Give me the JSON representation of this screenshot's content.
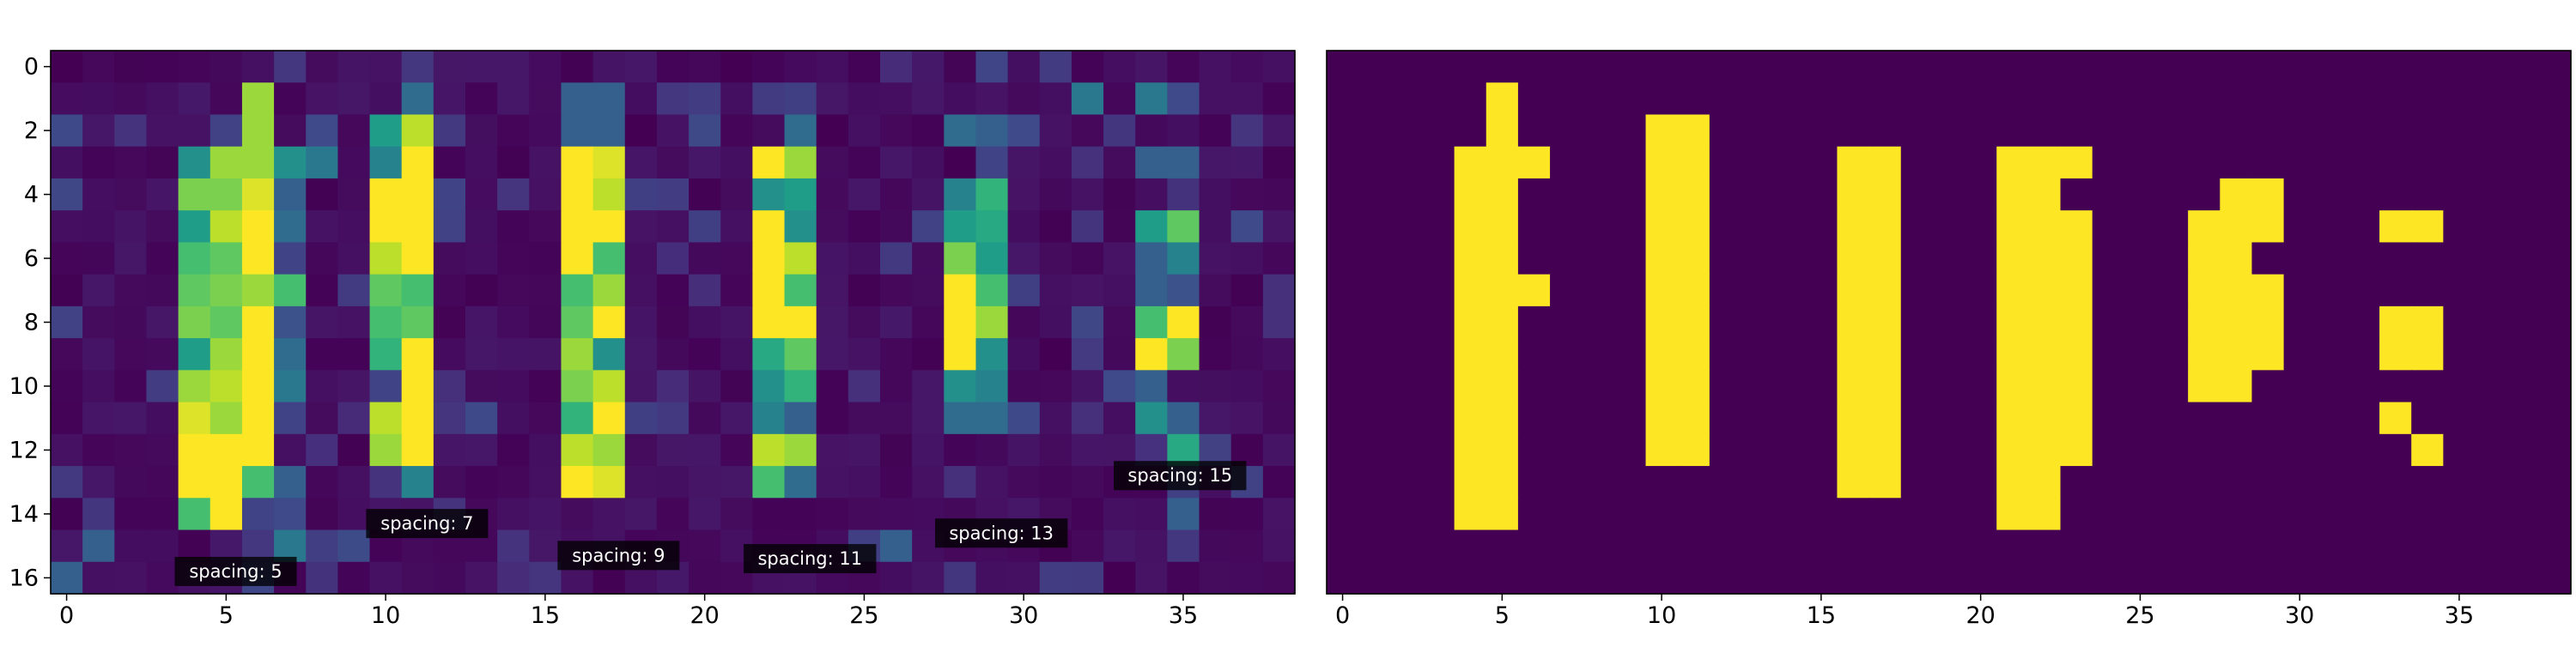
{
  "chart_data": [
    {
      "type": "heatmap",
      "title": "",
      "xlabel": "",
      "ylabel": "",
      "colormap": "viridis",
      "xlim": [
        -0.5,
        38.5
      ],
      "ylim": [
        16.5,
        -0.5
      ],
      "x_ticks": [
        0,
        5,
        10,
        15,
        20,
        25,
        30,
        35
      ],
      "y_ticks": [
        0,
        2,
        4,
        6,
        8,
        10,
        12,
        14,
        16
      ],
      "background_value": 0.0,
      "bright_cells": [
        [
          6,
          1,
          0.85
        ],
        [
          6,
          2,
          0.85
        ],
        [
          4,
          3,
          0.5
        ],
        [
          5,
          3,
          0.85
        ],
        [
          6,
          3,
          0.85
        ],
        [
          7,
          3,
          0.5
        ],
        [
          8,
          3,
          0.4
        ],
        [
          4,
          4,
          0.8
        ],
        [
          5,
          4,
          0.8
        ],
        [
          6,
          4,
          0.95
        ],
        [
          7,
          4,
          0.3
        ],
        [
          4,
          5,
          0.55
        ],
        [
          5,
          5,
          0.9
        ],
        [
          6,
          5,
          1.0
        ],
        [
          7,
          5,
          0.35
        ],
        [
          4,
          6,
          0.7
        ],
        [
          5,
          6,
          0.75
        ],
        [
          6,
          6,
          1.0
        ],
        [
          7,
          6,
          0.2
        ],
        [
          4,
          7,
          0.75
        ],
        [
          5,
          7,
          0.8
        ],
        [
          6,
          7,
          0.85
        ],
        [
          7,
          7,
          0.7
        ],
        [
          4,
          8,
          0.8
        ],
        [
          5,
          8,
          0.75
        ],
        [
          6,
          8,
          1.0
        ],
        [
          7,
          8,
          0.25
        ],
        [
          4,
          9,
          0.55
        ],
        [
          5,
          9,
          0.85
        ],
        [
          6,
          9,
          1.0
        ],
        [
          7,
          9,
          0.35
        ],
        [
          4,
          10,
          0.85
        ],
        [
          5,
          10,
          0.9
        ],
        [
          6,
          10,
          1.0
        ],
        [
          7,
          10,
          0.4
        ],
        [
          4,
          11,
          0.95
        ],
        [
          5,
          11,
          0.85
        ],
        [
          6,
          11,
          1.0
        ],
        [
          7,
          11,
          0.2
        ],
        [
          4,
          12,
          1.0
        ],
        [
          5,
          12,
          1.0
        ],
        [
          6,
          12,
          1.0
        ],
        [
          4,
          13,
          1.0
        ],
        [
          5,
          13,
          1.0
        ],
        [
          6,
          13,
          0.7
        ],
        [
          7,
          13,
          0.3
        ],
        [
          4,
          14,
          0.7
        ],
        [
          5,
          14,
          1.0
        ],
        [
          6,
          14,
          0.2
        ],
        [
          7,
          15,
          0.4
        ],
        [
          1,
          15,
          0.3
        ],
        [
          0,
          16,
          0.3
        ],
        [
          11,
          1,
          0.35
        ],
        [
          10,
          2,
          0.55
        ],
        [
          11,
          2,
          0.9
        ],
        [
          10,
          3,
          0.45
        ],
        [
          11,
          3,
          1.0
        ],
        [
          10,
          4,
          1.0
        ],
        [
          11,
          4,
          1.0
        ],
        [
          10,
          5,
          1.0
        ],
        [
          11,
          5,
          1.0
        ],
        [
          10,
          6,
          0.9
        ],
        [
          11,
          6,
          1.0
        ],
        [
          10,
          7,
          0.75
        ],
        [
          11,
          7,
          0.7
        ],
        [
          10,
          8,
          0.7
        ],
        [
          11,
          8,
          0.75
        ],
        [
          10,
          9,
          0.65
        ],
        [
          11,
          9,
          1.0
        ],
        [
          10,
          10,
          0.2
        ],
        [
          11,
          10,
          1.0
        ],
        [
          10,
          11,
          0.9
        ],
        [
          11,
          11,
          1.0
        ],
        [
          10,
          12,
          0.85
        ],
        [
          11,
          12,
          1.0
        ],
        [
          11,
          13,
          0.45
        ],
        [
          16,
          1,
          0.3
        ],
        [
          17,
          1,
          0.3
        ],
        [
          16,
          2,
          0.3
        ],
        [
          17,
          2,
          0.3
        ],
        [
          16,
          3,
          1.0
        ],
        [
          17,
          3,
          0.95
        ],
        [
          16,
          4,
          1.0
        ],
        [
          17,
          4,
          0.9
        ],
        [
          16,
          5,
          1.0
        ],
        [
          17,
          5,
          1.0
        ],
        [
          16,
          6,
          1.0
        ],
        [
          17,
          6,
          0.7
        ],
        [
          16,
          7,
          0.7
        ],
        [
          17,
          7,
          0.85
        ],
        [
          16,
          8,
          0.75
        ],
        [
          17,
          8,
          1.0
        ],
        [
          16,
          9,
          0.85
        ],
        [
          17,
          9,
          0.5
        ],
        [
          16,
          10,
          0.8
        ],
        [
          17,
          10,
          0.9
        ],
        [
          16,
          11,
          0.65
        ],
        [
          17,
          11,
          1.0
        ],
        [
          16,
          12,
          0.9
        ],
        [
          17,
          12,
          0.85
        ],
        [
          16,
          13,
          1.0
        ],
        [
          17,
          13,
          0.95
        ],
        [
          23,
          2,
          0.35
        ],
        [
          22,
          3,
          1.0
        ],
        [
          23,
          3,
          0.85
        ],
        [
          22,
          4,
          0.5
        ],
        [
          23,
          4,
          0.55
        ],
        [
          22,
          5,
          1.0
        ],
        [
          23,
          5,
          0.5
        ],
        [
          22,
          6,
          1.0
        ],
        [
          23,
          6,
          0.9
        ],
        [
          22,
          7,
          1.0
        ],
        [
          23,
          7,
          0.7
        ],
        [
          22,
          8,
          1.0
        ],
        [
          23,
          8,
          1.0
        ],
        [
          22,
          9,
          0.6
        ],
        [
          23,
          9,
          0.75
        ],
        [
          22,
          10,
          0.5
        ],
        [
          23,
          10,
          0.65
        ],
        [
          22,
          11,
          0.45
        ],
        [
          23,
          11,
          0.3
        ],
        [
          22,
          12,
          0.9
        ],
        [
          23,
          12,
          0.85
        ],
        [
          22,
          13,
          0.7
        ],
        [
          23,
          13,
          0.35
        ],
        [
          28,
          2,
          0.35
        ],
        [
          29,
          2,
          0.3
        ],
        [
          29,
          3,
          0.2
        ],
        [
          28,
          4,
          0.45
        ],
        [
          29,
          4,
          0.65
        ],
        [
          28,
          5,
          0.55
        ],
        [
          29,
          5,
          0.6
        ],
        [
          28,
          6,
          0.8
        ],
        [
          29,
          6,
          0.55
        ],
        [
          28,
          7,
          1.0
        ],
        [
          29,
          7,
          0.7
        ],
        [
          28,
          8,
          1.0
        ],
        [
          29,
          8,
          0.85
        ],
        [
          28,
          9,
          1.0
        ],
        [
          29,
          9,
          0.5
        ],
        [
          28,
          10,
          0.5
        ],
        [
          29,
          10,
          0.45
        ],
        [
          28,
          11,
          0.35
        ],
        [
          29,
          11,
          0.35
        ],
        [
          26,
          15,
          0.3
        ],
        [
          32,
          1,
          0.4
        ],
        [
          34,
          1,
          0.4
        ],
        [
          34,
          3,
          0.3
        ],
        [
          35,
          3,
          0.3
        ],
        [
          34,
          5,
          0.55
        ],
        [
          35,
          5,
          0.75
        ],
        [
          34,
          6,
          0.3
        ],
        [
          35,
          6,
          0.45
        ],
        [
          34,
          7,
          0.3
        ],
        [
          35,
          7,
          0.25
        ],
        [
          34,
          8,
          0.7
        ],
        [
          35,
          8,
          1.0
        ],
        [
          34,
          9,
          1.0
        ],
        [
          35,
          9,
          0.8
        ],
        [
          34,
          10,
          0.3
        ],
        [
          34,
          11,
          0.5
        ],
        [
          35,
          11,
          0.3
        ],
        [
          35,
          12,
          0.6
        ],
        [
          35,
          14,
          0.3
        ]
      ],
      "annotations": [
        {
          "text": "spacing: 5",
          "x": 5.3,
          "y": 15.8
        },
        {
          "text": "spacing: 7",
          "x": 11.3,
          "y": 14.3
        },
        {
          "text": "spacing: 9",
          "x": 17.3,
          "y": 15.3
        },
        {
          "text": "spacing: 11",
          "x": 23.3,
          "y": 15.4
        },
        {
          "text": "spacing: 13",
          "x": 29.3,
          "y": 14.6
        },
        {
          "text": "spacing: 15",
          "x": 34.9,
          "y": 12.8
        }
      ]
    },
    {
      "type": "heatmap",
      "title": "",
      "xlabel": "",
      "ylabel": "",
      "colormap": "binary (viridis endpoints)",
      "xlim": [
        -0.5,
        38.5
      ],
      "ylim": [
        16.5,
        -0.5
      ],
      "x_ticks": [
        0,
        5,
        10,
        15,
        20,
        25,
        30,
        35
      ],
      "values_on": [
        [
          5,
          1,
          2
        ],
        [
          4,
          3,
          14
        ],
        [
          5,
          3,
          14
        ],
        [
          6,
          3,
          3
        ],
        [
          6,
          7,
          7
        ],
        [
          10,
          2,
          5
        ],
        [
          11,
          2,
          12
        ],
        [
          10,
          5,
          10
        ],
        [
          10,
          11,
          12
        ],
        [
          16,
          3,
          13
        ],
        [
          17,
          3,
          13
        ],
        [
          21,
          3,
          14
        ],
        [
          22,
          3,
          14
        ],
        [
          23,
          3,
          3
        ],
        [
          23,
          5,
          5
        ],
        [
          22,
          6,
          11
        ],
        [
          23,
          6,
          11
        ],
        [
          23,
          12,
          12
        ],
        [
          27,
          5,
          10
        ],
        [
          28,
          4,
          10
        ],
        [
          29,
          4,
          5
        ],
        [
          28,
          7,
          8
        ],
        [
          29,
          7,
          9
        ],
        [
          33,
          5,
          5
        ],
        [
          34,
          5,
          5
        ],
        [
          33,
          8,
          9
        ],
        [
          34,
          8,
          9
        ],
        [
          33,
          11,
          11
        ],
        [
          34,
          12,
          12
        ]
      ]
    }
  ],
  "colors": {
    "low": "#440154",
    "high": "#fde725",
    "label_bg": "#000000",
    "label_text": "#ffffff"
  }
}
